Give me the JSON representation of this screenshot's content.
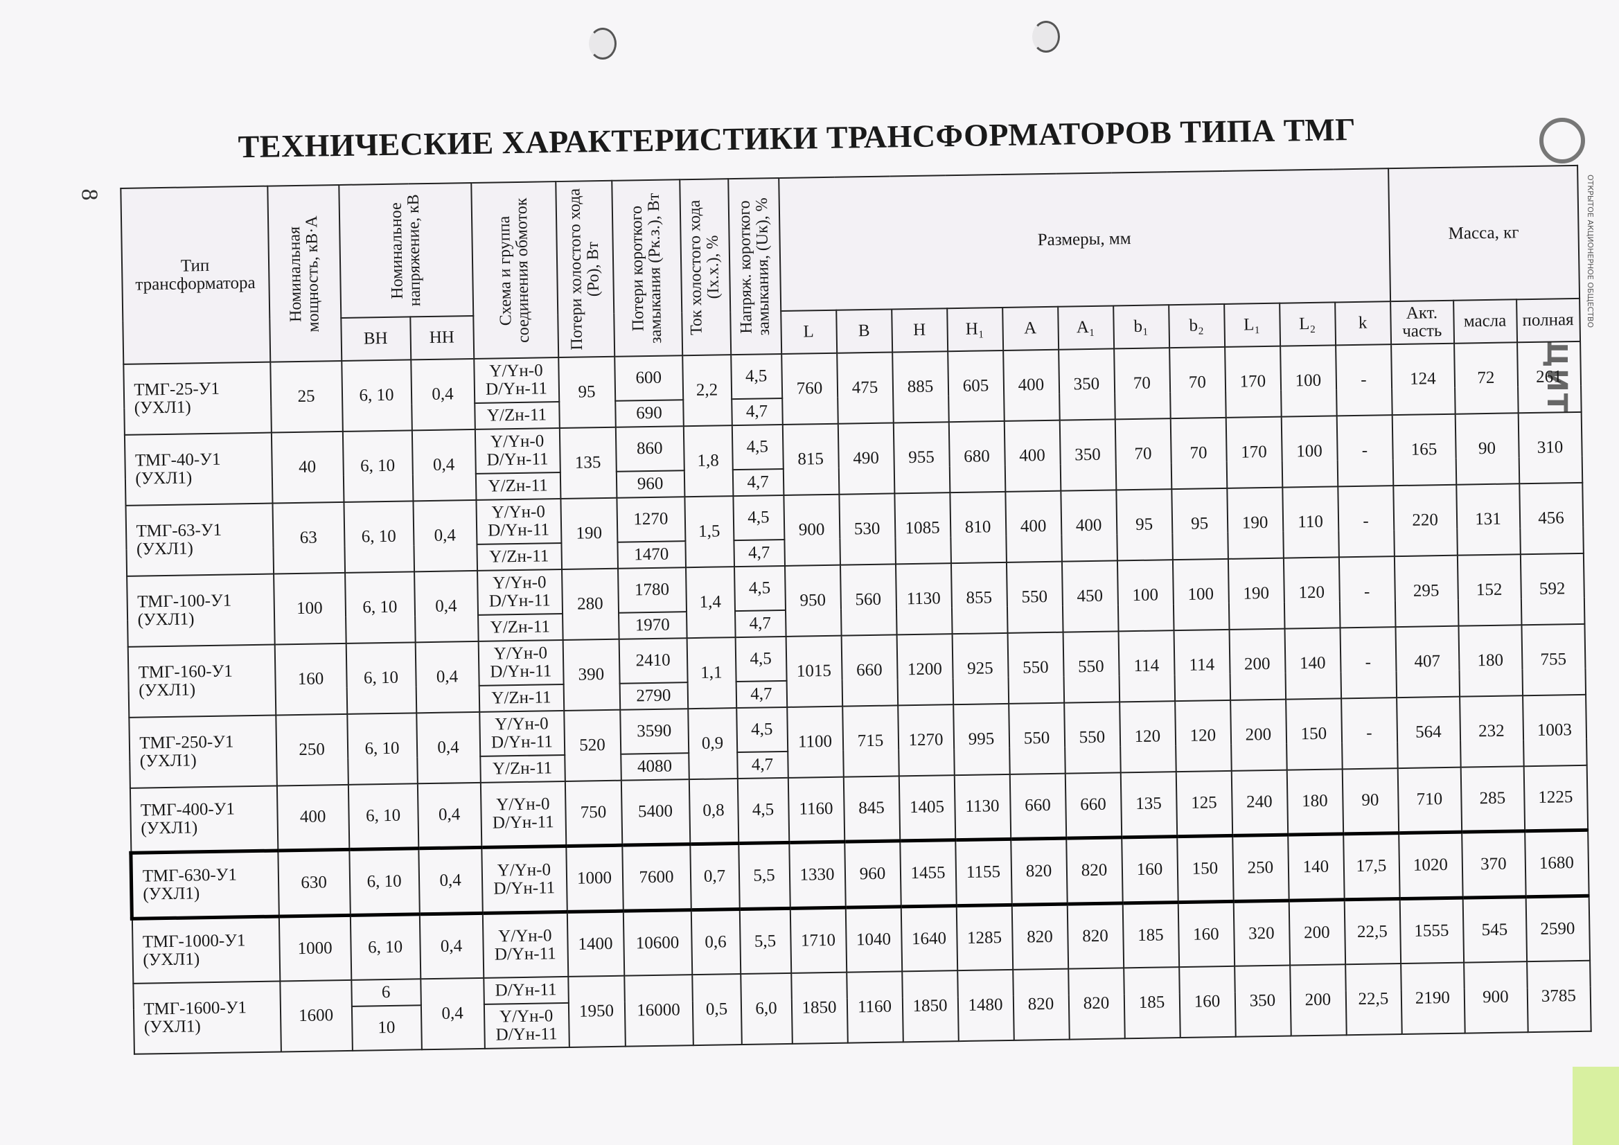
{
  "page_number": "8",
  "title": "ТЕХНИЧЕСКИЕ ХАРАКТЕРИСТИКИ ТРАНСФОРМАТОРОВ ТИПА ТМГ",
  "logo": {
    "name": "ЭЛЕКТРОЩИТ",
    "subtitle": "ОТКРЫТОЕ АКЦИОНЕРНОЕ ОБЩЕСТВО"
  },
  "headers": {
    "type": "Тип трансформатора",
    "power": "Номинальная мощность, кВ·А",
    "voltage": "Номинальное напряжение, кВ",
    "vn": "ВН",
    "nn": "НН",
    "scheme": "Схема и группа соединения обмоток",
    "po": "Потери холостого хода (Ро), Вт",
    "pk": "Потери короткого замыкания (Рк.з.), Вт",
    "ix": "Ток холостого хода (Iх.х.), %",
    "uk": "Напряж. короткого замыкания, (Uк), %",
    "dims": "Размеры, мм",
    "dim_cols": [
      "L",
      "B",
      "H",
      "H₁",
      "A",
      "A₁",
      "b₁",
      "b₂",
      "L₁",
      "L₂",
      "k"
    ],
    "mass": "Масса, кг",
    "mass_cols": [
      "Акт. часть",
      "масла",
      "полная"
    ]
  },
  "rows": [
    {
      "type": "ТМГ-25-У1 (УХЛ1)",
      "power": "25",
      "vn": "6, 10",
      "nn": "0,4",
      "scheme1": "Y/Yн-0 D/Yн-11",
      "scheme2": "Y/Zн-11",
      "po": "95",
      "pk1": "600",
      "pk2": "690",
      "ix": "2,2",
      "uk1": "4,5",
      "uk2": "4,7",
      "dims": [
        "760",
        "475",
        "885",
        "605",
        "400",
        "350",
        "70",
        "70",
        "170",
        "100",
        "-"
      ],
      "mass": [
        "124",
        "72",
        "261"
      ]
    },
    {
      "type": "ТМГ-40-У1 (УХЛ1)",
      "power": "40",
      "vn": "6, 10",
      "nn": "0,4",
      "scheme1": "Y/Yн-0 D/Yн-11",
      "scheme2": "Y/Zн-11",
      "po": "135",
      "pk1": "860",
      "pk2": "960",
      "ix": "1,8",
      "uk1": "4,5",
      "uk2": "4,7",
      "dims": [
        "815",
        "490",
        "955",
        "680",
        "400",
        "350",
        "70",
        "70",
        "170",
        "100",
        "-"
      ],
      "mass": [
        "165",
        "90",
        "310"
      ]
    },
    {
      "type": "ТМГ-63-У1 (УХЛ1)",
      "power": "63",
      "vn": "6, 10",
      "nn": "0,4",
      "scheme1": "Y/Yн-0 D/Yн-11",
      "scheme2": "Y/Zн-11",
      "po": "190",
      "pk1": "1270",
      "pk2": "1470",
      "ix": "1,5",
      "uk1": "4,5",
      "uk2": "4,7",
      "dims": [
        "900",
        "530",
        "1085",
        "810",
        "400",
        "400",
        "95",
        "95",
        "190",
        "110",
        "-"
      ],
      "mass": [
        "220",
        "131",
        "456"
      ]
    },
    {
      "type": "ТМГ-100-У1 (УХЛ1)",
      "power": "100",
      "vn": "6, 10",
      "nn": "0,4",
      "scheme1": "Y/Yн-0 D/Yн-11",
      "scheme2": "Y/Zн-11",
      "po": "280",
      "pk1": "1780",
      "pk2": "1970",
      "ix": "1,4",
      "uk1": "4,5",
      "uk2": "4,7",
      "dims": [
        "950",
        "560",
        "1130",
        "855",
        "550",
        "450",
        "100",
        "100",
        "190",
        "120",
        "-"
      ],
      "mass": [
        "295",
        "152",
        "592"
      ]
    },
    {
      "type": "ТМГ-160-У1 (УХЛ1)",
      "power": "160",
      "vn": "6, 10",
      "nn": "0,4",
      "scheme1": "Y/Yн-0 D/Yн-11",
      "scheme2": "Y/Zн-11",
      "po": "390",
      "pk1": "2410",
      "pk2": "2790",
      "ix": "1,1",
      "uk1": "4,5",
      "uk2": "4,7",
      "dims": [
        "1015",
        "660",
        "1200",
        "925",
        "550",
        "550",
        "114",
        "114",
        "200",
        "140",
        "-"
      ],
      "mass": [
        "407",
        "180",
        "755"
      ]
    },
    {
      "type": "ТМГ-250-У1 (УХЛ1)",
      "power": "250",
      "vn": "6, 10",
      "nn": "0,4",
      "scheme1": "Y/Yн-0 D/Yн-11",
      "scheme2": "Y/Zн-11",
      "po": "520",
      "pk1": "3590",
      "pk2": "4080",
      "ix": "0,9",
      "uk1": "4,5",
      "uk2": "4,7",
      "dims": [
        "1100",
        "715",
        "1270",
        "995",
        "550",
        "550",
        "120",
        "120",
        "200",
        "150",
        "-"
      ],
      "mass": [
        "564",
        "232",
        "1003"
      ]
    },
    {
      "type": "ТМГ-400-У1 (УХЛ1)",
      "power": "400",
      "vn": "6, 10",
      "nn": "0,4",
      "scheme1": "Y/Yн-0 D/Yн-11",
      "po": "750",
      "pk1": "5400",
      "ix": "0,8",
      "uk1": "4,5",
      "dims": [
        "1160",
        "845",
        "1405",
        "1130",
        "660",
        "660",
        "135",
        "125",
        "240",
        "180",
        "90"
      ],
      "mass": [
        "710",
        "285",
        "1225"
      ]
    },
    {
      "type": "ТМГ-630-У1 (УХЛ1)",
      "power": "630",
      "vn": "6, 10",
      "nn": "0,4",
      "scheme1": "Y/Yн-0 D/Yн-11",
      "po": "1000",
      "pk1": "7600",
      "ix": "0,7",
      "uk1": "5,5",
      "dims": [
        "1330",
        "960",
        "1455",
        "1155",
        "820",
        "820",
        "160",
        "150",
        "250",
        "140",
        "17,5"
      ],
      "mass": [
        "1020",
        "370",
        "1680"
      ],
      "highlighted": true
    },
    {
      "type": "ТМГ-1000-У1 (УХЛ1)",
      "power": "1000",
      "vn": "6, 10",
      "nn": "0,4",
      "scheme1": "Y/Yн-0 D/Yн-11",
      "po": "1400",
      "pk1": "10600",
      "ix": "0,6",
      "uk1": "5,5",
      "dims": [
        "1710",
        "1040",
        "1640",
        "1285",
        "820",
        "820",
        "185",
        "160",
        "320",
        "200",
        "22,5"
      ],
      "mass": [
        "1555",
        "545",
        "2590"
      ]
    },
    {
      "type": "ТМГ-1600-У1 (УХЛ1)",
      "power": "1600",
      "vn": "6",
      "vn2": "10",
      "nn": "0,4",
      "scheme1": "D/Yн-11",
      "scheme2": "Y/Yн-0 D/Yн-11",
      "po": "1950",
      "pk1": "16000",
      "ix": "0,5",
      "uk1": "6,0",
      "dims": [
        "1850",
        "1160",
        "1850",
        "1480",
        "820",
        "820",
        "185",
        "160",
        "350",
        "200",
        "22,5"
      ],
      "mass": [
        "2190",
        "900",
        "3785"
      ]
    }
  ]
}
